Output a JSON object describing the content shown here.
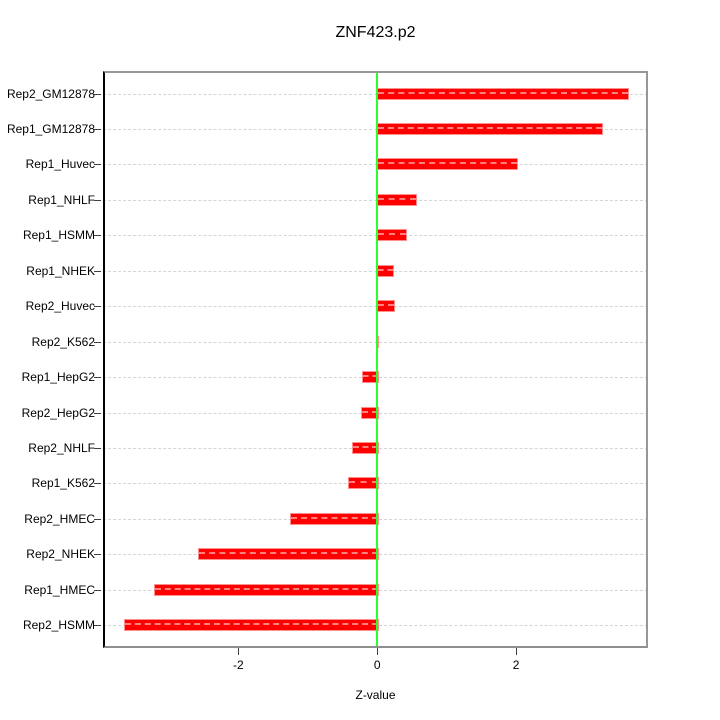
{
  "chart_data": {
    "type": "bar",
    "orientation": "horizontal",
    "title": "ZNF423.p2",
    "xlabel": "Z-value",
    "categories": [
      "Rep2_GM12878",
      "Rep1_GM12878",
      "Rep1_Huvec",
      "Rep1_NHLF",
      "Rep1_HSMM",
      "Rep1_NHEK",
      "Rep2_Huvec",
      "Rep2_K562",
      "Rep1_HepG2",
      "Rep2_HepG2",
      "Rep2_NHLF",
      "Rep1_K562",
      "Rep2_HMEC",
      "Rep2_NHEK",
      "Rep1_HMEC",
      "Rep2_HSMM"
    ],
    "values": [
      3.6,
      3.23,
      2.0,
      0.54,
      0.4,
      0.21,
      0.22,
      -0.02,
      -0.22,
      -0.23,
      -0.37,
      -0.42,
      -1.25,
      -2.58,
      -3.21,
      -3.65
    ],
    "xlim": [
      -3.95,
      3.9
    ],
    "xticks": [
      -2,
      0,
      2
    ],
    "grid": "dashed-horizontal-per-category",
    "legend": "none",
    "style": {
      "bar_color": "#ff0000",
      "bar_border_color": "#ff9090",
      "bar_dash_overlay": "rgba(255,255,255,0.5)",
      "zero_line_color": "#2cfe2c",
      "grid_color": "#d5d5d5",
      "box_color": "#979797",
      "axis_color": "#000000",
      "background": "#ffffff"
    }
  }
}
